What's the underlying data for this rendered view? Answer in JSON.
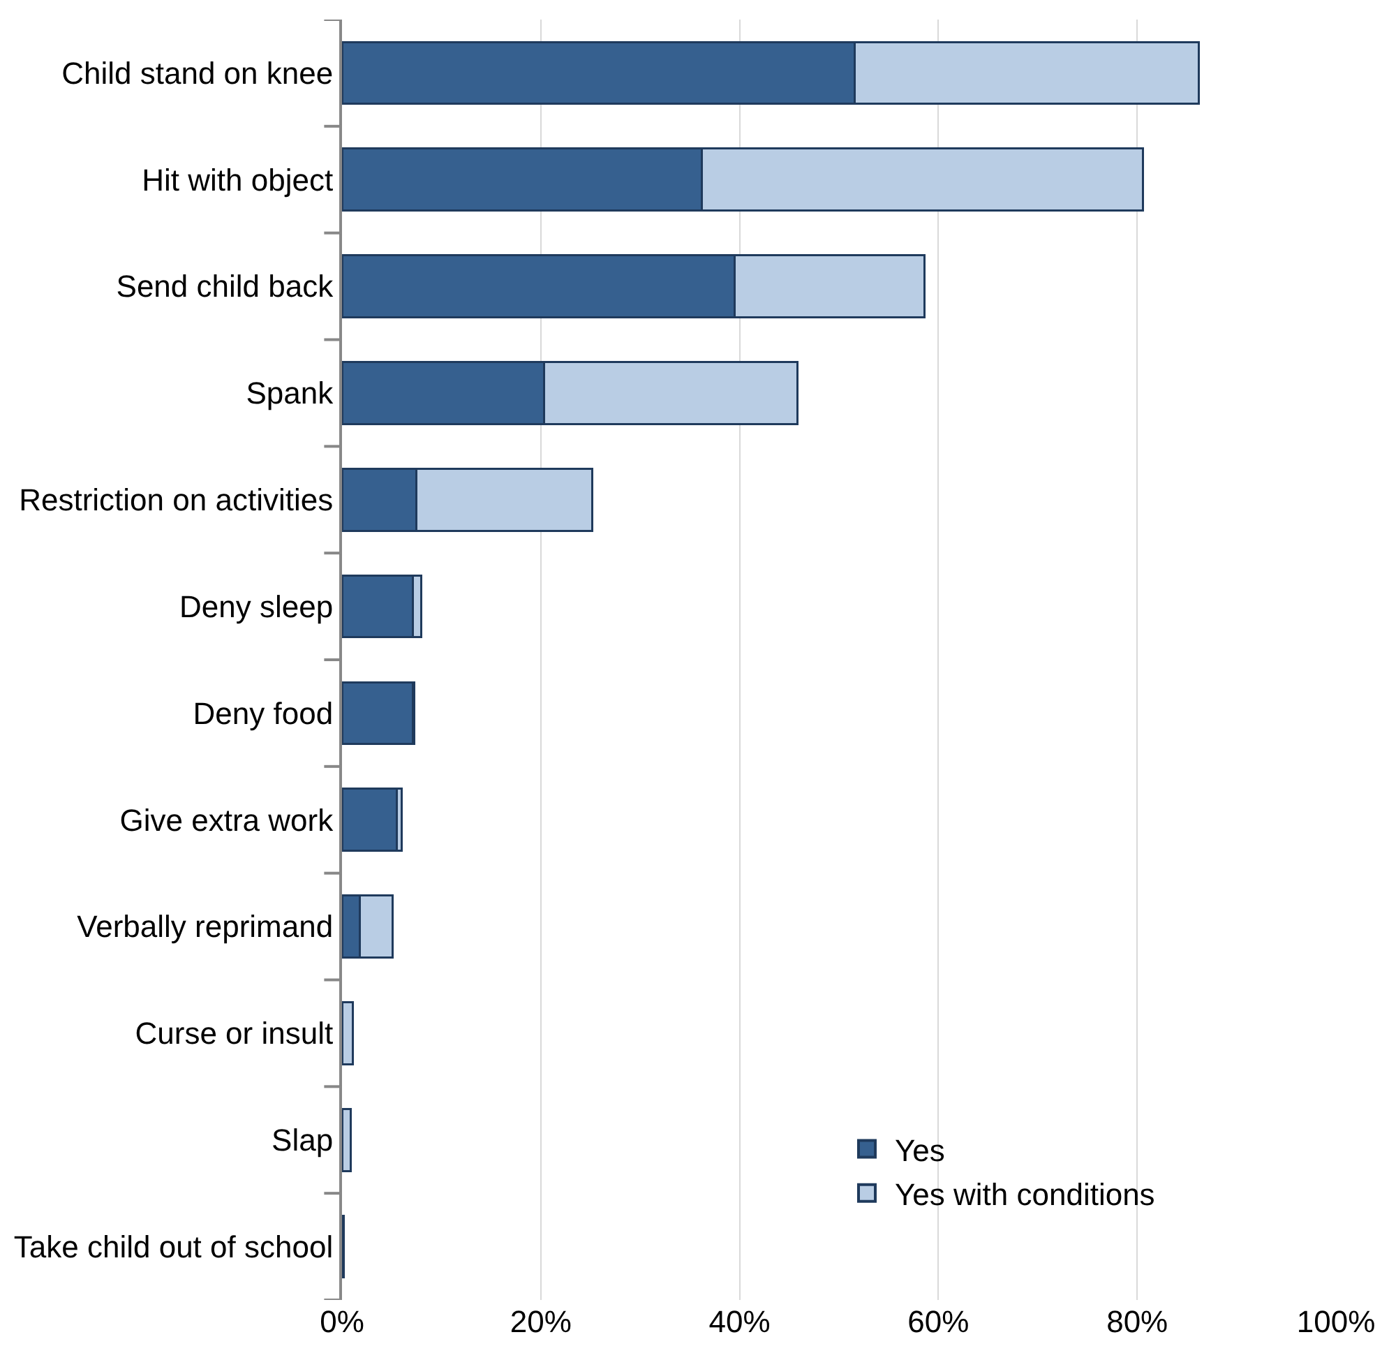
{
  "chart_data": {
    "type": "bar",
    "orientation": "horizontal",
    "stacked": true,
    "categories": [
      "Child stand on knee",
      "Hit with object",
      "Send child back",
      "Spank",
      "Restriction on activities",
      "Deny sleep",
      "Deny food",
      "Give extra work",
      "Verbally reprimand",
      "Curse or insult",
      "Slap",
      "Take child out of school"
    ],
    "series": [
      {
        "name": "Yes",
        "color": "#36608f",
        "values": [
          51.6,
          36.2,
          39.5,
          20.3,
          7.5,
          7.1,
          7.1,
          5.5,
          1.8,
          null,
          null,
          null
        ]
      },
      {
        "name": "Yes with conditions",
        "color": "#b9cde4",
        "values": [
          34.6,
          44.4,
          19.1,
          25.5,
          17.7,
          0.9,
          0.2,
          0.5,
          3.3,
          1.1,
          0.9,
          0.2
        ]
      }
    ],
    "xlim": [
      0,
      100
    ],
    "xticks": [
      {
        "value": 0,
        "label": "0%"
      },
      {
        "value": 20,
        "label": "20%"
      },
      {
        "value": 40,
        "label": "40%"
      },
      {
        "value": 60,
        "label": "60%"
      },
      {
        "value": 80,
        "label": "80%"
      },
      {
        "value": 100,
        "label": "100%"
      }
    ],
    "grid": "x",
    "legend": "bottom right"
  }
}
